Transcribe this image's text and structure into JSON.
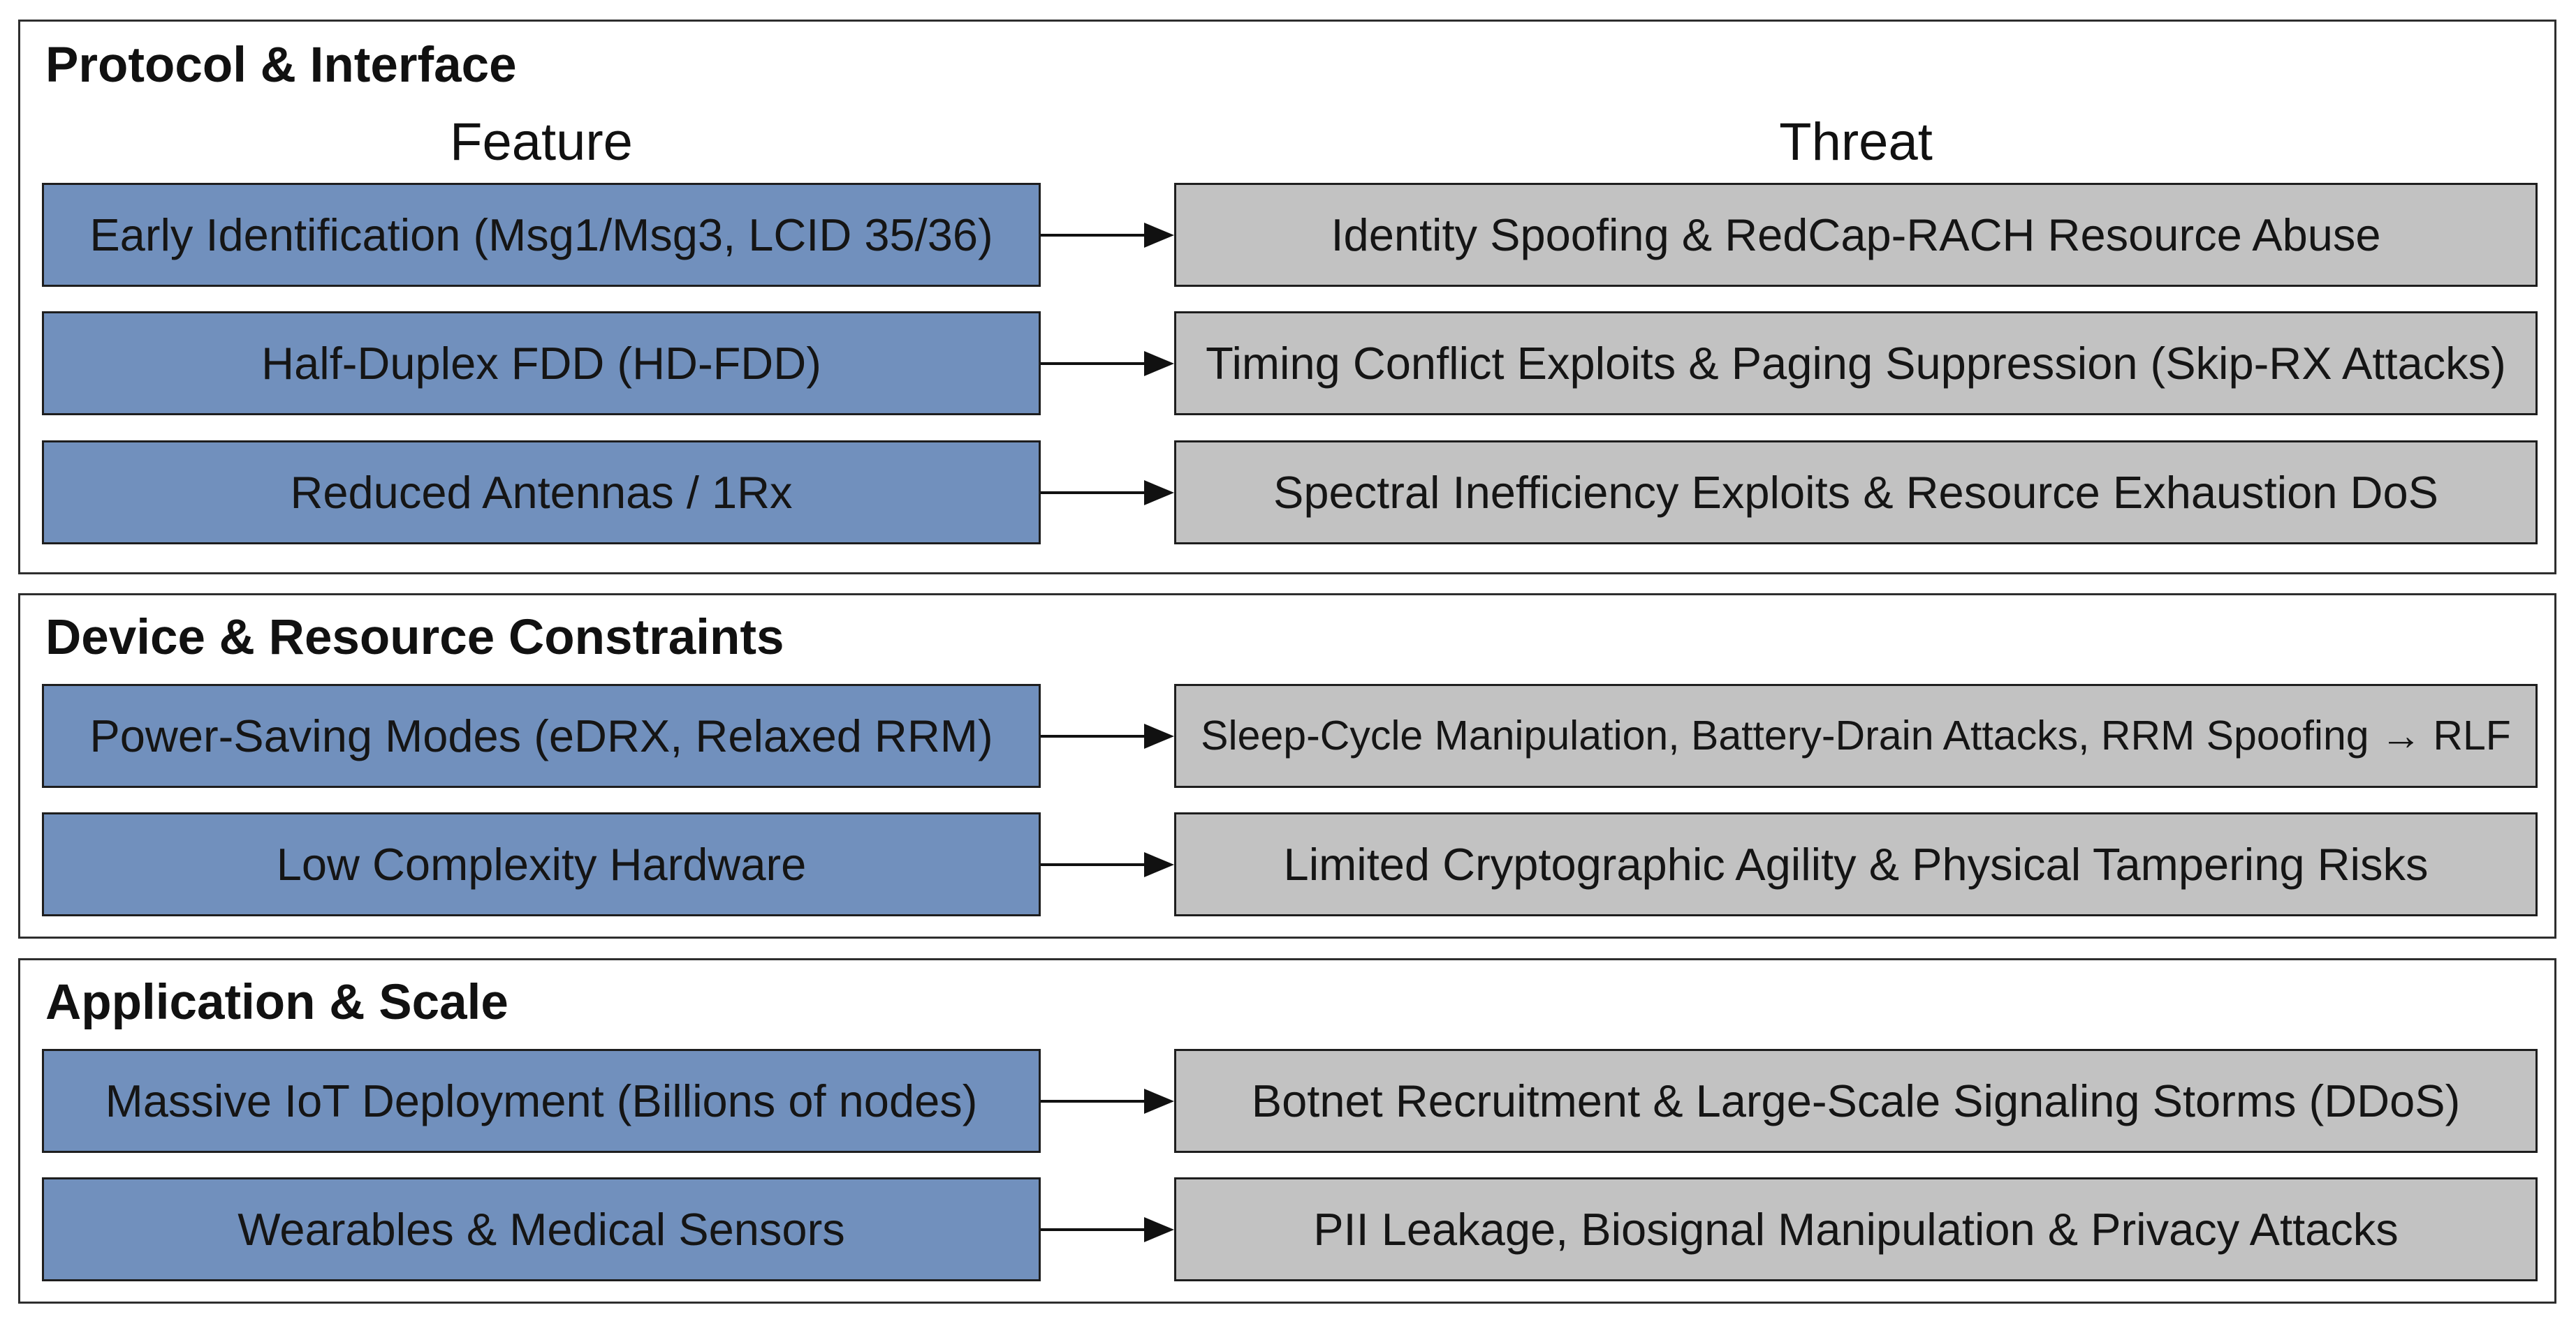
{
  "columns": {
    "feature": "Feature",
    "threat": "Threat"
  },
  "colors": {
    "feature_fill": "#7190bd",
    "threat_fill": "#c2c2c2",
    "border": "#1e1e1e",
    "text": "#151515"
  },
  "sections": [
    {
      "title": "Protocol & Interface",
      "rows": [
        {
          "feature": "Early Identification (Msg1/Msg3, LCID 35/36)",
          "threat": "Identity Spoofing & RedCap-RACH Resource Abuse"
        },
        {
          "feature": "Half-Duplex FDD (HD-FDD)",
          "threat": "Timing Conflict Exploits & Paging Suppression (Skip-RX Attacks)"
        },
        {
          "feature": "Reduced Antennas / 1Rx",
          "threat": "Spectral Inefficiency Exploits & Resource Exhaustion DoS"
        }
      ]
    },
    {
      "title": "Device & Resource Constraints",
      "rows": [
        {
          "feature": "Power-Saving Modes (eDRX, Relaxed RRM)",
          "threat": "Sleep-Cycle Manipulation, Battery-Drain Attacks, RRM Spoofing → RLF"
        },
        {
          "feature": "Low Complexity Hardware",
          "threat": "Limited Cryptographic Agility & Physical Tampering Risks"
        }
      ]
    },
    {
      "title": "Application & Scale",
      "rows": [
        {
          "feature": "Massive IoT Deployment (Billions of nodes)",
          "threat": "Botnet Recruitment & Large-Scale Signaling Storms (DDoS)"
        },
        {
          "feature": "Wearables & Medical Sensors",
          "threat": "PII Leakage, Biosignal Manipulation & Privacy Attacks"
        }
      ]
    }
  ]
}
